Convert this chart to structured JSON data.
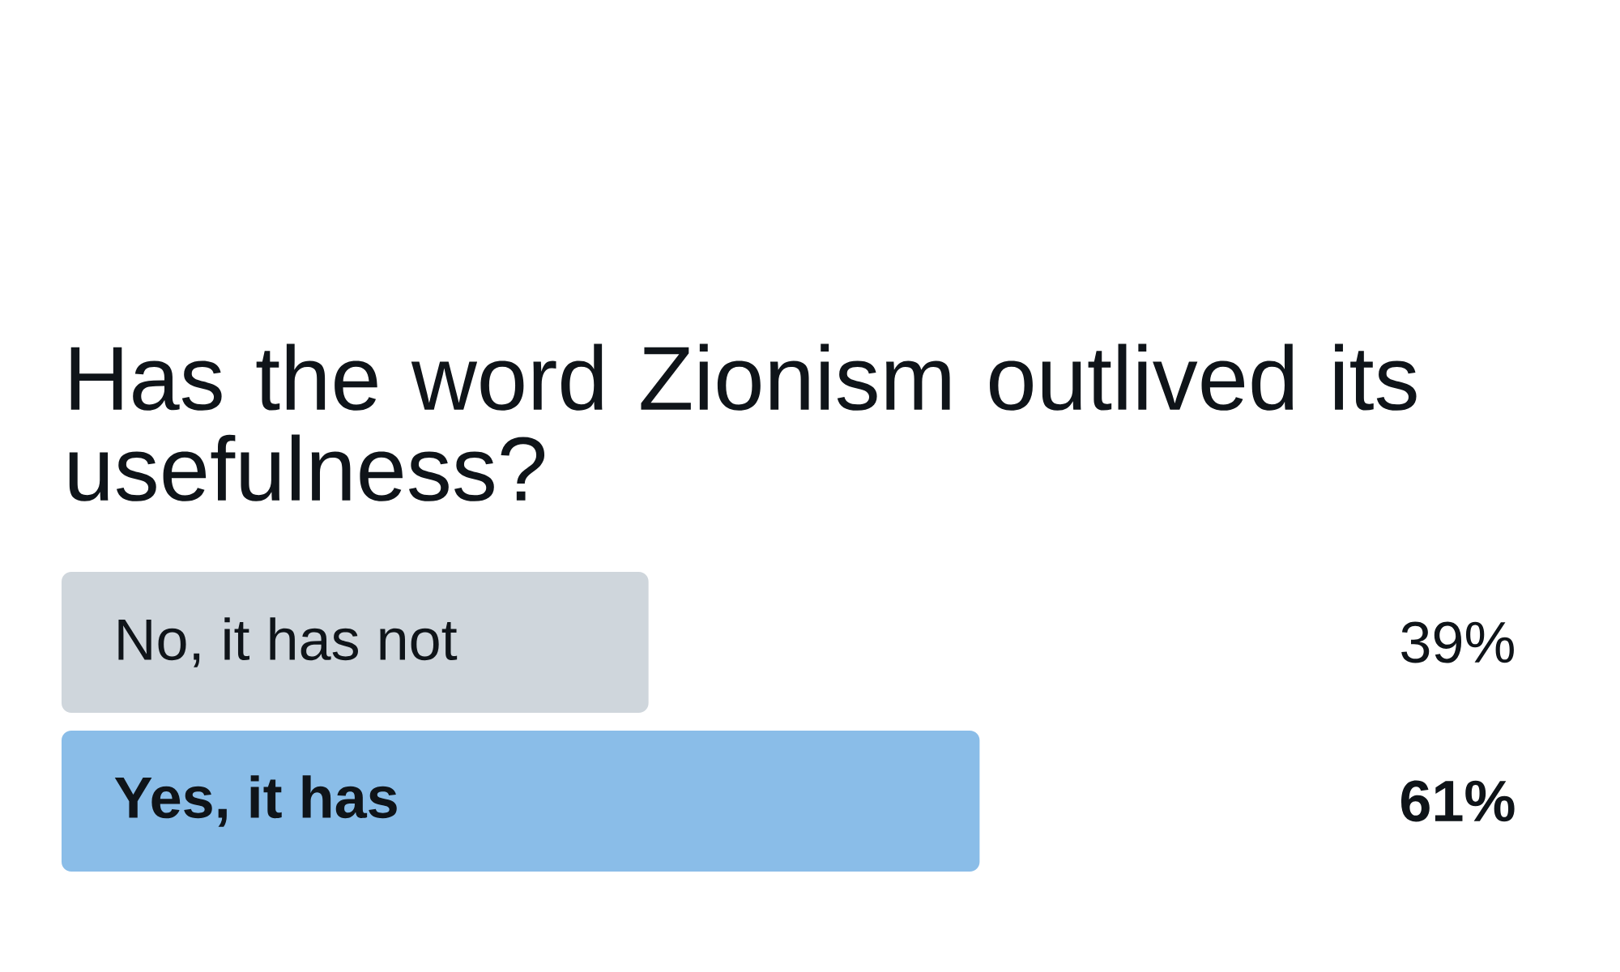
{
  "chart_data": {
    "type": "bar",
    "title": "Has the word Zionism outlived its usefulness?",
    "orientation": "horizontal",
    "categories": [
      "No, it has not",
      "Yes, it has"
    ],
    "values": [
      39,
      61
    ],
    "colors": [
      "#cfd6dc",
      "#8abde8"
    ],
    "value_labels": [
      "39%",
      "61%"
    ]
  }
}
